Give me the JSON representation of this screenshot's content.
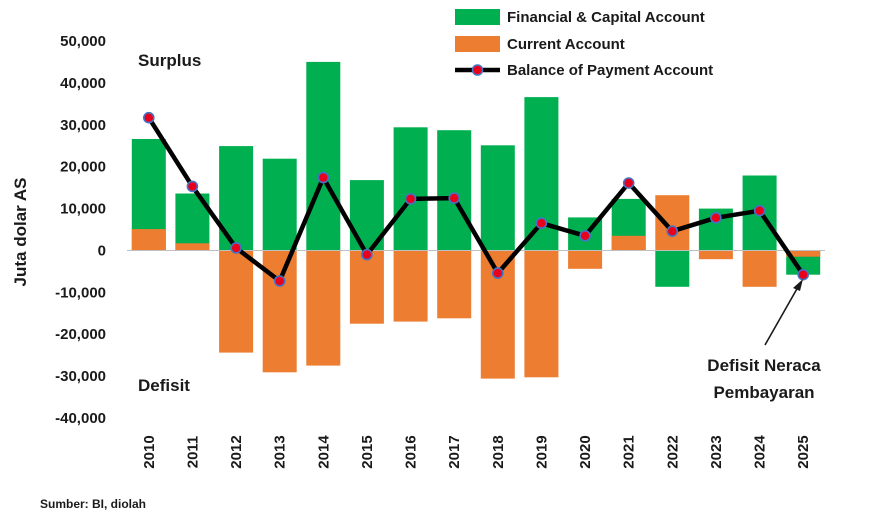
{
  "chart_data": {
    "type": "bar",
    "ylabel": "Juta dolar AS",
    "ylim": [
      -40000,
      50000
    ],
    "yticks": [
      50000,
      40000,
      30000,
      20000,
      10000,
      0,
      -10000,
      -20000,
      -30000,
      -40000
    ],
    "ytick_labels": [
      "50,000",
      "40,000",
      "30,000",
      "20,000",
      "10,000",
      "0",
      "-10,000",
      "-20,000",
      "-30,000",
      "-40,000"
    ],
    "categories": [
      "2010",
      "2011",
      "2012",
      "2013",
      "2014",
      "2015",
      "2016",
      "2017",
      "2018",
      "2019",
      "2020",
      "2021",
      "2022",
      "2023",
      "2024",
      "2025"
    ],
    "series": [
      {
        "name": "Financial & Capital Account",
        "kind": "bar",
        "color": "#00b050",
        "values": [
          26600,
          13600,
          24900,
          21900,
          45000,
          16800,
          29400,
          28700,
          25100,
          36600,
          7900,
          12300,
          -8700,
          10000,
          17900,
          -5800
        ]
      },
      {
        "name": "Current Account",
        "kind": "bar",
        "color": "#ed7d31",
        "values": [
          5100,
          1700,
          -24400,
          -29100,
          -27500,
          -17500,
          -17000,
          -16200,
          -30600,
          -30300,
          -4400,
          3500,
          13200,
          -2100,
          -8700,
          -1500
        ]
      },
      {
        "name": "Balance of Payment Account",
        "kind": "line",
        "color": "#000000",
        "marker_fill": "#e8001c",
        "marker_edge": "#4472c4",
        "values": [
          31700,
          15300,
          600,
          -7300,
          17400,
          -1000,
          12300,
          12500,
          -5400,
          6500,
          3500,
          16100,
          4600,
          7800,
          9500,
          -5800
        ]
      }
    ],
    "legend": "top-right",
    "grid": false,
    "annotations": {
      "surplus": "Surplus",
      "deficit": "Defisit",
      "callout_line1": "Defisit Neraca",
      "callout_line2": "Pembayaran"
    },
    "source": "Sumber: BI, diolah"
  }
}
